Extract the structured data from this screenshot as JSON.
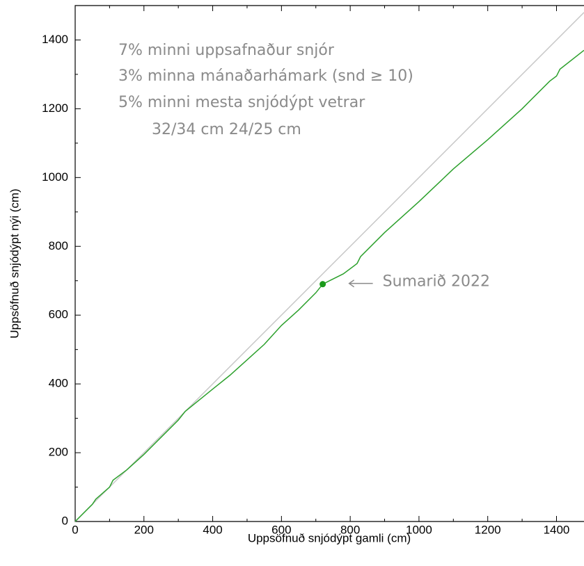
{
  "chart_data": {
    "type": "line",
    "xlabel": "Uppsöfnuð snjódýpt gamli (cm)",
    "ylabel": "Uppsöfnuð snjódýpt nýi (cm)",
    "annotations": [
      "7% minni uppsafnaður snjór",
      "3% minna mánaðarhámark (snd ≥ 10)",
      "5% minni mesta snjódýpt vetrar",
      "32/34 cm  24/25 cm"
    ],
    "xlim": [
      0,
      1480
    ],
    "ylim": [
      0,
      1500
    ],
    "xticks": [
      0,
      200,
      400,
      600,
      800,
      1000,
      1200,
      1400
    ],
    "yticks": [
      0,
      200,
      400,
      600,
      800,
      1000,
      1200,
      1400
    ],
    "xminorticks": [
      100,
      300,
      500,
      700,
      900,
      1100,
      1300
    ],
    "yminorticks": [
      100,
      300,
      500,
      700,
      900,
      1100,
      1300
    ],
    "reference_line": {
      "color": "#c8c8c8",
      "x": [
        0,
        1480
      ],
      "values": [
        0,
        1480
      ]
    },
    "x": [
      0,
      50,
      60,
      100,
      110,
      150,
      200,
      250,
      300,
      320,
      400,
      450,
      500,
      550,
      600,
      650,
      700,
      720,
      740,
      780,
      820,
      830,
      900,
      1000,
      1100,
      1200,
      1300,
      1380,
      1400,
      1410,
      1480
    ],
    "series": [
      {
        "color": "#2ca02c",
        "values": [
          0,
          50,
          65,
          100,
          120,
          150,
          195,
          245,
          295,
          320,
          385,
          425,
          470,
          515,
          570,
          615,
          665,
          690,
          700,
          720,
          750,
          770,
          840,
          930,
          1025,
          1110,
          1200,
          1280,
          1295,
          1315,
          1370
        ]
      }
    ],
    "highlight": {
      "x": 720,
      "y": 690,
      "color": "#1a9a1a",
      "label": "Sumarið 2022"
    }
  }
}
